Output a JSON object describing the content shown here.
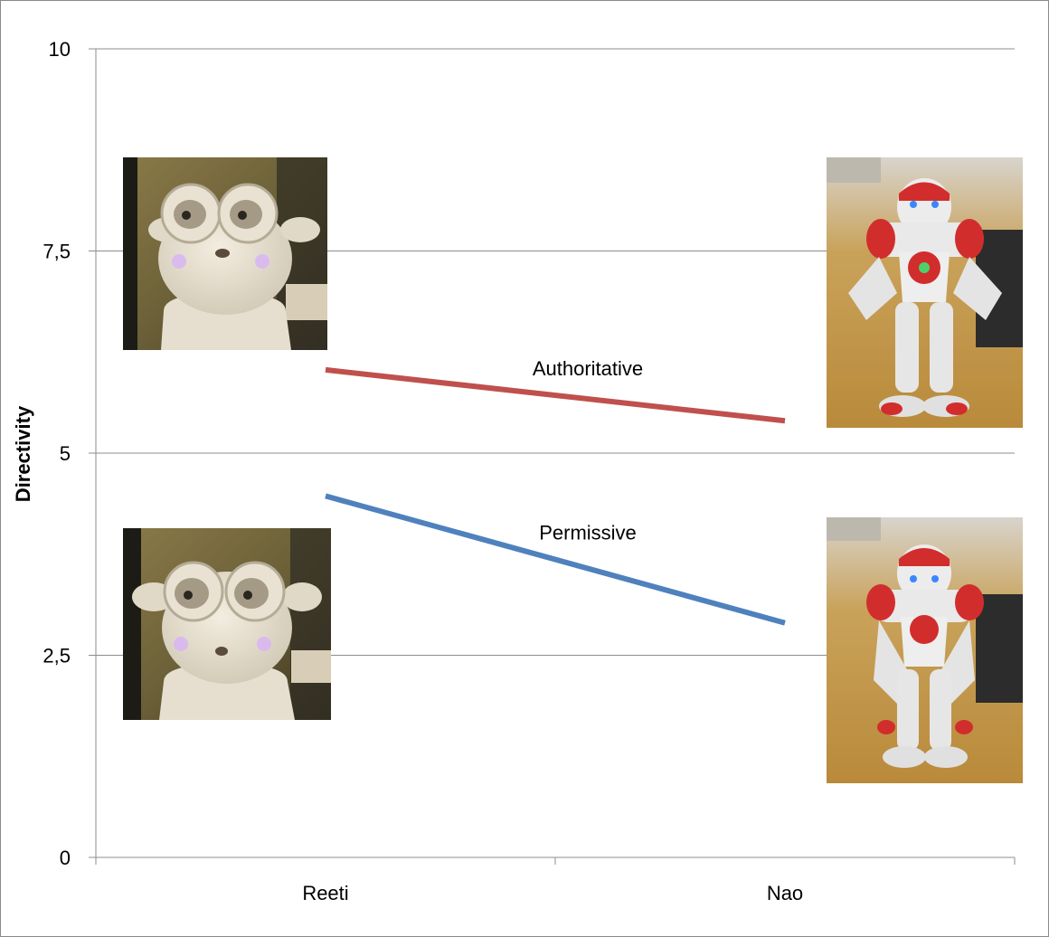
{
  "chart_data": {
    "type": "line",
    "categories": [
      "Reeti",
      "Nao"
    ],
    "series": [
      {
        "name": "Authoritative",
        "values": [
          6.03,
          5.4
        ],
        "color": "#c0504d"
      },
      {
        "name": "Permissive",
        "values": [
          4.47,
          2.9
        ],
        "color": "#4f81bd"
      }
    ],
    "ylabel": "Directivity",
    "xlabel": "",
    "title": "",
    "ylim": [
      0,
      10
    ],
    "yticks": [
      {
        "value": 0,
        "label": "0"
      },
      {
        "value": 2.5,
        "label": "2,5"
      },
      {
        "value": 5,
        "label": "5"
      },
      {
        "value": 7.5,
        "label": "7,5"
      },
      {
        "value": 10,
        "label": "10"
      }
    ],
    "grid": true,
    "legend": "none"
  },
  "images": [
    {
      "name": "reeti-authoritative-photo",
      "subject": "Reeti robot"
    },
    {
      "name": "reeti-permissive-photo",
      "subject": "Reeti robot"
    },
    {
      "name": "nao-authoritative-photo",
      "subject": "Nao robot"
    },
    {
      "name": "nao-permissive-photo",
      "subject": "Nao robot"
    }
  ]
}
